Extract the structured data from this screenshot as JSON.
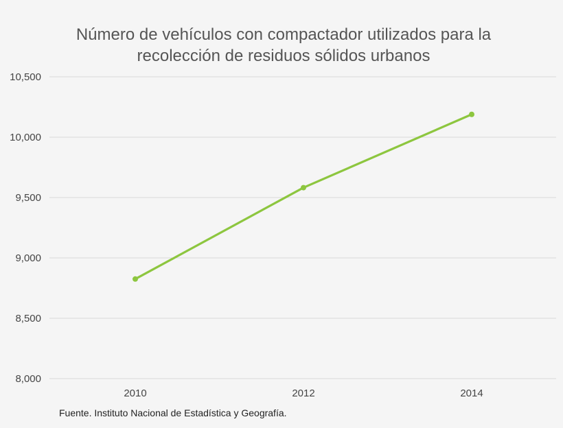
{
  "chart_data": {
    "type": "line",
    "title": "Número de vehículos con compactador utilizados para la recolección de residuos sólidos urbanos",
    "title_lines": [
      "Número de vehículos con compactador utilizados para la",
      "recolección de residuos sólidos urbanos"
    ],
    "categories": [
      "2010",
      "2012",
      "2014"
    ],
    "series": [
      {
        "values": [
          8825,
          9582,
          10189
        ],
        "color": "#8dc63f"
      }
    ],
    "xlabel": "",
    "ylabel": "",
    "ylim": [
      8000,
      10500
    ],
    "yticks": [
      8000,
      8500,
      9000,
      9500,
      10000,
      10500
    ],
    "ytick_labels": [
      "8,000",
      "8,500",
      "9,000",
      "9,500",
      "10,000",
      "10,500"
    ],
    "grid": true,
    "legend": "none"
  },
  "source": "Fuente. Instituto Nacional de Estadística y Geografía."
}
